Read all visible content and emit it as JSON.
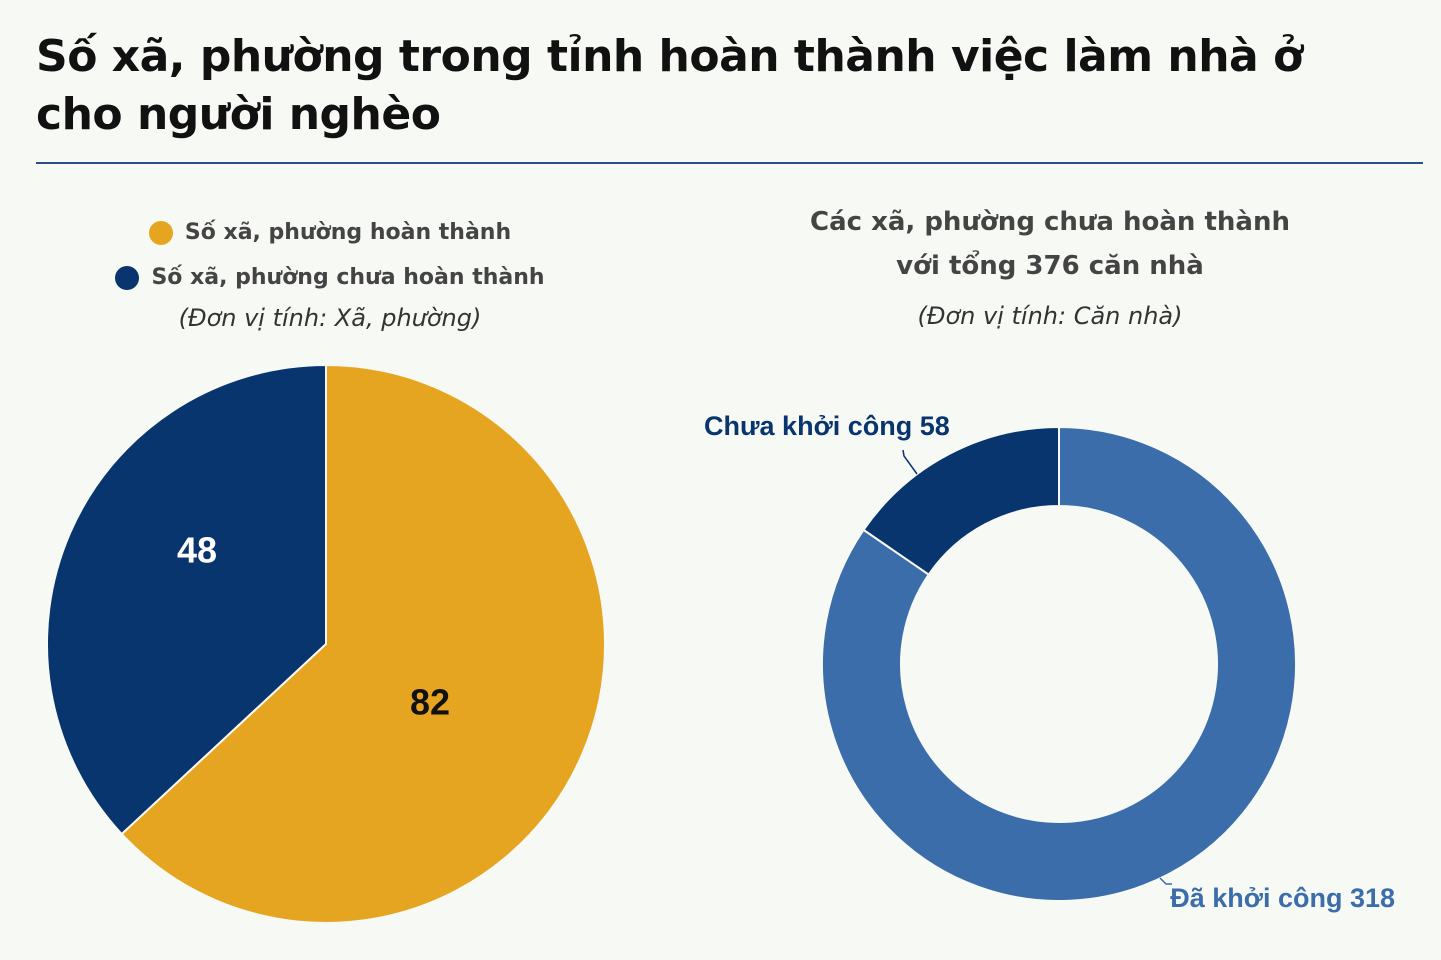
{
  "title": "Số xã, phường trong tỉnh hoàn thành việc làm nhà ở cho người nghèo",
  "chart_data": [
    {
      "type": "pie",
      "legend_position": "top",
      "unit": "(Đơn vị tính: Xã, phường)",
      "series": [
        {
          "name": "Số xã, phường hoàn thành",
          "value": 82,
          "label": "82",
          "color": "#e6a520"
        },
        {
          "name": "Số xã, phường chưa hoàn thành",
          "value": 48,
          "label": "48",
          "color": "#08356e"
        }
      ]
    },
    {
      "type": "donut",
      "title": "Các xã, phường chưa hoàn thành với tổng 376 căn nhà",
      "title_line1": "Các xã, phường chưa hoàn thành",
      "title_line2": "với tổng 376 căn nhà",
      "unit": "(Đơn vị tính: Căn nhà)",
      "series": [
        {
          "name": "Đã khởi công",
          "value": 318,
          "label": "Đã khởi công 318",
          "color": "#3a6daa"
        },
        {
          "name": "Chưa khởi công",
          "value": 58,
          "label": "Chưa khởi công 58",
          "color": "#08356e"
        }
      ]
    }
  ]
}
